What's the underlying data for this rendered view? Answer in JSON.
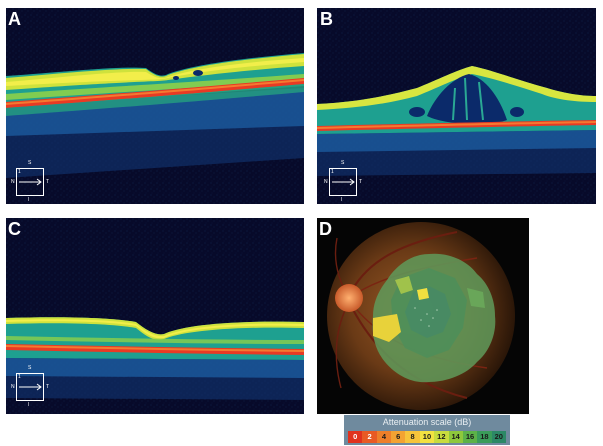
{
  "panels": {
    "a": {
      "letter": "A"
    },
    "b": {
      "letter": "B"
    },
    "c": {
      "letter": "C"
    },
    "d": {
      "letter": "D"
    }
  },
  "orientation_key": {
    "top": "S",
    "bottom": "I",
    "left": "N",
    "right": "T",
    "index": "1"
  },
  "attenuation_scale": {
    "title": "Attenuation scale (dB)",
    "ticks": [
      "0",
      "2",
      "4",
      "6",
      "8",
      "10",
      "12",
      "14",
      "16",
      "18",
      "20"
    ],
    "colors": [
      "#e0321e",
      "#e85a24",
      "#ee7f2a",
      "#f3a332",
      "#f6c43a",
      "#f2e242",
      "#c8dc3e",
      "#8ec83c",
      "#5cb248",
      "#3a9c5a",
      "#2c8866"
    ]
  },
  "colors": {
    "oct_background": "#070a2a",
    "fundus_background": "#050505"
  }
}
